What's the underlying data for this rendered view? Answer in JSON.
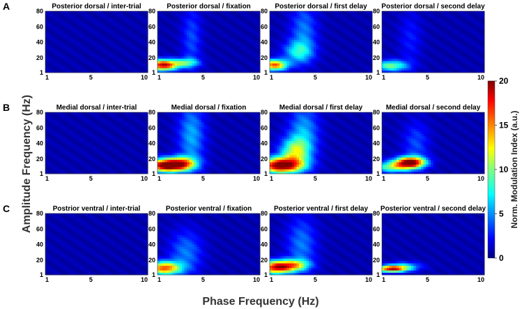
{
  "chart_data": {
    "type": "heatmap",
    "xlabel": "Phase Frequency (Hz)",
    "ylabel": "Amplitude Frequency (Hz)",
    "x_ticks": [
      "1",
      "5",
      "10"
    ],
    "y_ticks": [
      "1",
      "20",
      "40",
      "60",
      "80"
    ],
    "xlim": [
      1,
      10
    ],
    "ylim": [
      1,
      80
    ],
    "colorbar": {
      "label": "Norm. Modulation Index (a.u.)",
      "ticks": [
        "0",
        "5",
        "10",
        "15",
        "20"
      ],
      "range": [
        0,
        20
      ],
      "colormap": "jet"
    },
    "rows": [
      {
        "letter": "A",
        "panels": [
          {
            "title": "Posterior dorsal  / inter-trial",
            "hotspots": []
          },
          {
            "title": "Posterior dorsal / fixation",
            "hotspots": [
              {
                "x": 1.5,
                "y": 11,
                "value": 18,
                "sx": 0.9,
                "sy": 5
              },
              {
                "x": 3.5,
                "y": 14,
                "value": 7,
                "sx": 0.8,
                "sy": 4
              },
              {
                "x": 4.0,
                "y": 45,
                "value": 3,
                "sx": 0.6,
                "sy": 30
              }
            ]
          },
          {
            "title": "Posterior dorsal / first delay",
            "hotspots": [
              {
                "x": 1.4,
                "y": 11,
                "value": 15,
                "sx": 0.8,
                "sy": 5
              },
              {
                "x": 3.5,
                "y": 28,
                "value": 6,
                "sx": 0.9,
                "sy": 10
              },
              {
                "x": 4.0,
                "y": 55,
                "value": 4,
                "sx": 0.8,
                "sy": 25
              }
            ]
          },
          {
            "title": "Posterior dorsal / second delay",
            "hotspots": [
              {
                "x": 1.8,
                "y": 10,
                "value": 9,
                "sx": 1.0,
                "sy": 5
              },
              {
                "x": 3.5,
                "y": 45,
                "value": 2,
                "sx": 0.7,
                "sy": 25
              }
            ]
          }
        ]
      },
      {
        "letter": "B",
        "panels": [
          {
            "title": "Medial dorsal / inter-trial",
            "hotspots": []
          },
          {
            "title": "Medial dorsal / fixation",
            "hotspots": [
              {
                "x": 1.8,
                "y": 12,
                "value": 20,
                "sx": 1.2,
                "sy": 6
              },
              {
                "x": 3.2,
                "y": 15,
                "value": 9,
                "sx": 0.9,
                "sy": 6
              },
              {
                "x": 4.0,
                "y": 50,
                "value": 5,
                "sx": 0.8,
                "sy": 30
              }
            ]
          },
          {
            "title": "Medial dorsal / first delay",
            "hotspots": [
              {
                "x": 2.0,
                "y": 12,
                "value": 20,
                "sx": 1.3,
                "sy": 7
              },
              {
                "x": 3.2,
                "y": 30,
                "value": 9,
                "sx": 0.9,
                "sy": 12
              },
              {
                "x": 4.0,
                "y": 55,
                "value": 5,
                "sx": 0.9,
                "sy": 25
              }
            ]
          },
          {
            "title": "Medial dorsal / second delay",
            "hotspots": [
              {
                "x": 3.5,
                "y": 16,
                "value": 19,
                "sx": 0.9,
                "sy": 5
              },
              {
                "x": 2.0,
                "y": 10,
                "value": 9,
                "sx": 1.2,
                "sy": 5
              },
              {
                "x": 4.0,
                "y": 40,
                "value": 3,
                "sx": 0.8,
                "sy": 20
              }
            ]
          }
        ]
      },
      {
        "letter": "C",
        "panels": [
          {
            "title": "Postrior ventral / inter-trial",
            "hotspots": []
          },
          {
            "title": "Posterior ventral / fixation",
            "hotspots": [
              {
                "x": 1.6,
                "y": 10,
                "value": 15,
                "sx": 1.0,
                "sy": 6
              },
              {
                "x": 3.5,
                "y": 30,
                "value": 4,
                "sx": 1.0,
                "sy": 20
              }
            ]
          },
          {
            "title": "Posterior ventral / first delay",
            "hotspots": [
              {
                "x": 1.6,
                "y": 11,
                "value": 17,
                "sx": 1.0,
                "sy": 6
              },
              {
                "x": 3.2,
                "y": 14,
                "value": 9,
                "sx": 0.9,
                "sy": 5
              },
              {
                "x": 3.8,
                "y": 40,
                "value": 4,
                "sx": 0.9,
                "sy": 25
              }
            ]
          },
          {
            "title": "Posterior ventral / second delay",
            "hotspots": [
              {
                "x": 1.8,
                "y": 9,
                "value": 16,
                "sx": 0.9,
                "sy": 3
              },
              {
                "x": 3.0,
                "y": 12,
                "value": 6,
                "sx": 1.0,
                "sy": 4
              }
            ]
          }
        ]
      }
    ]
  }
}
